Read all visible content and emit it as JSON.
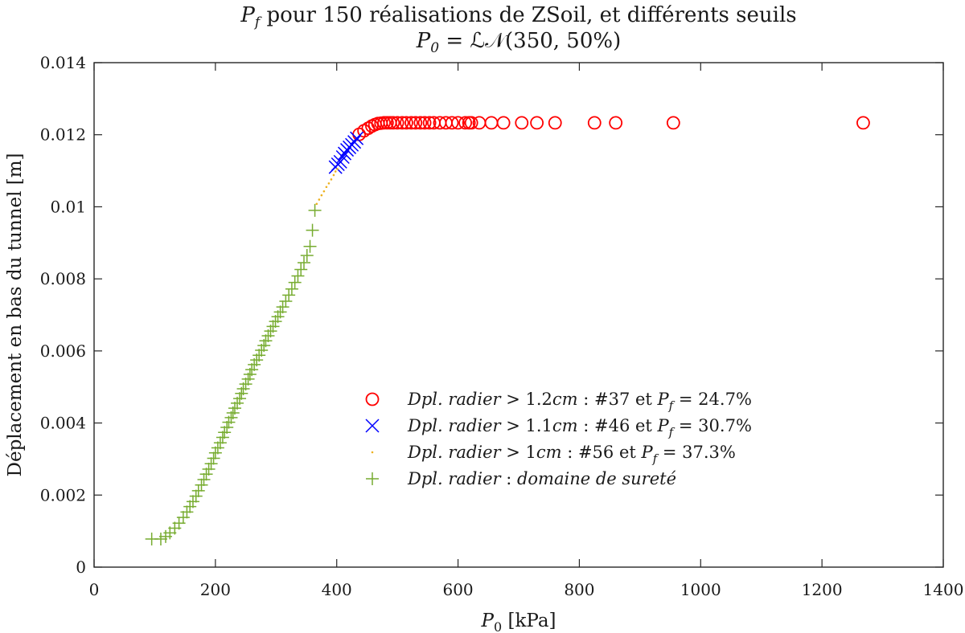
{
  "chart_data": {
    "type": "scatter",
    "title_lines": [
      [
        "P",
        "f",
        " pour 150 réalisations de ZSoil, et différents seuils"
      ],
      [
        "P",
        "0",
        " = ℒ𝒩(350, 50%)"
      ]
    ],
    "xlabel": [
      "P",
      "0",
      " [kPa]"
    ],
    "ylabel": "Déplacement en bas du tunnel [m]",
    "xlim": [
      0,
      1400
    ],
    "ylim": [
      0,
      0.014
    ],
    "xticks": [
      0,
      200,
      400,
      600,
      800,
      1000,
      1200,
      1400
    ],
    "xtick_labels": [
      "0",
      "200",
      "400",
      "600",
      "800",
      "1000",
      "1200",
      "1400"
    ],
    "yticks": [
      0,
      0.002,
      0.004,
      0.006,
      0.008,
      0.01,
      0.012,
      0.014
    ],
    "ytick_labels": [
      "0",
      "0.002",
      "0.004",
      "0.006",
      "0.008",
      "0.01",
      "0.012",
      "0.014"
    ],
    "grid": false,
    "legend_position": "lower-right",
    "series": [
      {
        "legend": [
          "Dpl. radier",
          " > 1.2",
          "cm",
          " : #37 et ",
          "P",
          "f",
          " = 24.7%"
        ],
        "marker": "circle",
        "color": "#ff0000",
        "x": [
          437,
          445,
          452,
          458,
          463,
          468,
          473,
          478,
          483,
          488,
          493,
          500,
          508,
          515,
          523,
          530,
          538,
          545,
          553,
          560,
          570,
          580,
          590,
          600,
          612,
          618,
          622,
          635,
          655,
          675,
          705,
          730,
          760,
          825,
          860,
          955,
          1268
        ],
        "y": [
          0.01201,
          0.01211,
          0.01218,
          0.01224,
          0.01228,
          0.01231,
          0.01232,
          0.01233,
          0.01233,
          0.01233,
          0.01233,
          0.01233,
          0.01233,
          0.01233,
          0.01233,
          0.01233,
          0.01233,
          0.01233,
          0.01233,
          0.01233,
          0.01233,
          0.01233,
          0.01233,
          0.01233,
          0.01233,
          0.01233,
          0.01233,
          0.01233,
          0.01233,
          0.01233,
          0.01233,
          0.01233,
          0.01233,
          0.01233,
          0.01233,
          0.01233,
          0.01233
        ]
      },
      {
        "legend": [
          "Dpl. radier",
          " > 1.1",
          "cm",
          " : #46 et ",
          "P",
          "f",
          " = 30.7%"
        ],
        "marker": "x",
        "color": "#0000ff",
        "x": [
          398,
          402,
          406,
          410,
          413,
          417,
          421,
          425,
          429,
          433
        ],
        "y": [
          0.0111,
          0.01118,
          0.01125,
          0.01138,
          0.01148,
          0.01158,
          0.01165,
          0.01172,
          0.0118,
          0.0119
        ]
      },
      {
        "legend": [
          "Dpl. radier",
          " > 1",
          "cm",
          " : #56 et ",
          "P",
          "f",
          " = 37.3%"
        ],
        "marker": "dot",
        "color": "#edb120",
        "x": [
          367,
          371,
          375,
          379,
          383,
          387,
          391,
          395,
          398,
          401
        ],
        "y": [
          0.01008,
          0.0102,
          0.01032,
          0.01043,
          0.01055,
          0.01065,
          0.01076,
          0.01088,
          0.01098,
          0.01105
        ]
      },
      {
        "legend": [
          "Dpl. radier",
          " : ",
          "domaine de sureté"
        ],
        "marker": "plus",
        "color": "#77ac30",
        "x": [
          95,
          110,
          118,
          125,
          133,
          140,
          147,
          153,
          158,
          163,
          168,
          172,
          177,
          181,
          185,
          189,
          193,
          197,
          200,
          204,
          208,
          212,
          215,
          219,
          222,
          226,
          229,
          232,
          236,
          240,
          243,
          246,
          250,
          254,
          257,
          260,
          264,
          268,
          272,
          276,
          280,
          283,
          287,
          291,
          295,
          299,
          303,
          307,
          311,
          316,
          321,
          326,
          331,
          336,
          341,
          346,
          351,
          356,
          360,
          364
        ],
        "y": [
          0.00078,
          0.00078,
          0.00085,
          0.00095,
          0.00108,
          0.00122,
          0.00138,
          0.00153,
          0.00168,
          0.00182,
          0.00197,
          0.00212,
          0.00228,
          0.00243,
          0.00258,
          0.00272,
          0.00287,
          0.00302,
          0.00317,
          0.00331,
          0.00345,
          0.0036,
          0.00374,
          0.00388,
          0.00402,
          0.00415,
          0.00428,
          0.00441,
          0.00455,
          0.00468,
          0.00482,
          0.00495,
          0.00508,
          0.00522,
          0.00535,
          0.00548,
          0.00562,
          0.00575,
          0.00588,
          0.00602,
          0.00615,
          0.00628,
          0.00642,
          0.00655,
          0.00668,
          0.00682,
          0.00695,
          0.00708,
          0.00722,
          0.00738,
          0.00755,
          0.00772,
          0.0079,
          0.00808,
          0.00826,
          0.00845,
          0.00865,
          0.0089,
          0.00935,
          0.0099
        ]
      }
    ]
  }
}
